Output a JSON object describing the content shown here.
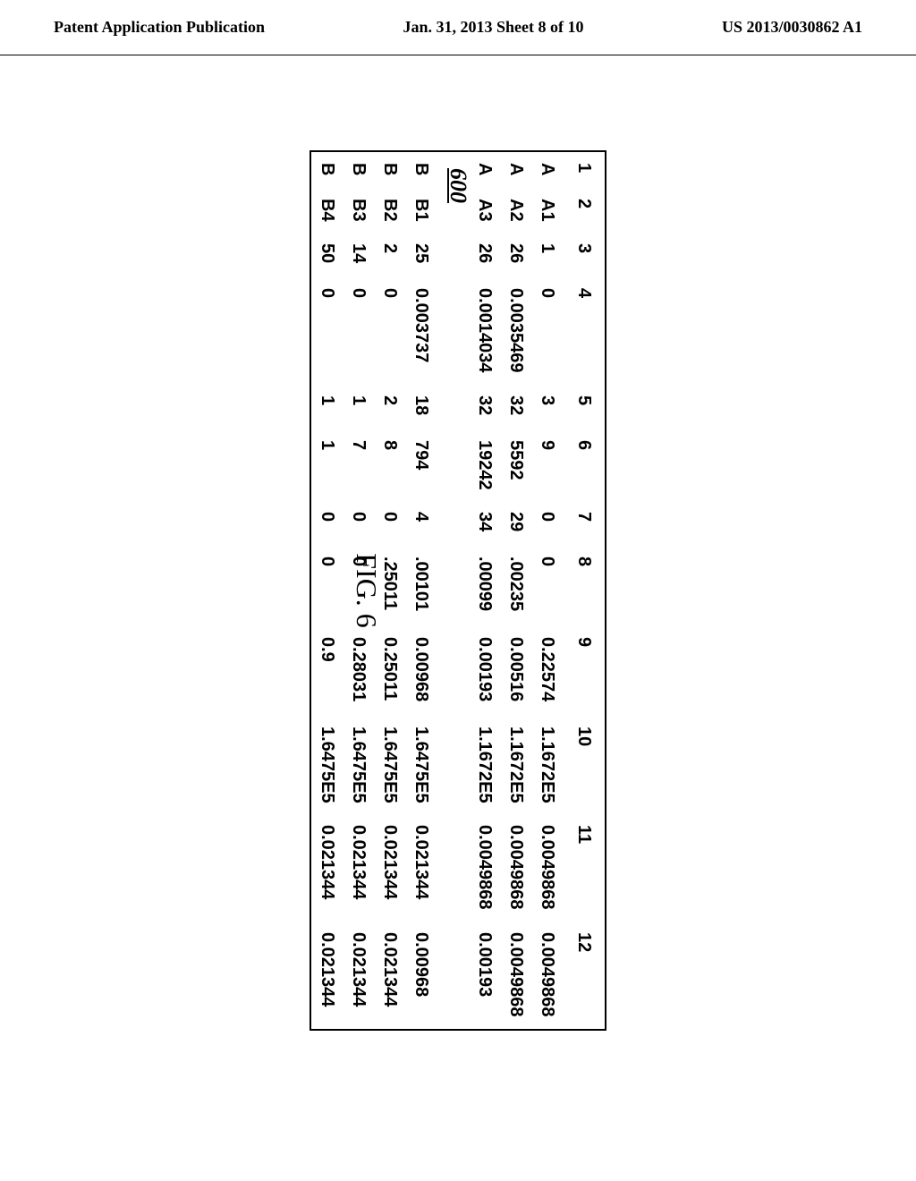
{
  "header": {
    "left": "Patent Application Publication",
    "center": "Jan. 31, 2013  Sheet 8 of 10",
    "right": "US 2013/0030862 A1"
  },
  "figure": {
    "ref": "600",
    "title": "FIG. 6"
  },
  "table": {
    "columns": [
      "1",
      "2",
      "3",
      "4",
      "5",
      "6",
      "7",
      "8",
      "9",
      "10",
      "11",
      "12"
    ],
    "groupA": [
      {
        "c1": "A",
        "c2": "A1",
        "c3": "1",
        "c4": "0",
        "c5": "3",
        "c6": "9",
        "c7": "0",
        "c8": "0",
        "c9": "0.22574",
        "c10": "1.1672E5",
        "c11": "0.0049868",
        "c12": "0.0049868"
      },
      {
        "c1": "A",
        "c2": "A2",
        "c3": "26",
        "c4": "0.0035469",
        "c5": "32",
        "c6": "5592",
        "c7": "29",
        "c8": ".00235",
        "c9": "0.00516",
        "c10": "1.1672E5",
        "c11": "0.0049868",
        "c12": "0.0049868"
      },
      {
        "c1": "A",
        "c2": "A3",
        "c3": "26",
        "c4": "0.0014034",
        "c5": "32",
        "c6": "19242",
        "c7": "34",
        "c8": ".00099",
        "c9": "0.00193",
        "c10": "1.1672E5",
        "c11": "0.0049868",
        "c12": "0.00193"
      }
    ],
    "groupB": [
      {
        "c1": "B",
        "c2": "B1",
        "c3": "25",
        "c4": "0.003737",
        "c5": "18",
        "c6": "794",
        "c7": "4",
        "c8": ".00101",
        "c9": "0.00968",
        "c10": "1.6475E5",
        "c11": "0.021344",
        "c12": "0.00968"
      },
      {
        "c1": "B",
        "c2": "B2",
        "c3": "2",
        "c4": "0",
        "c5": "2",
        "c6": "8",
        "c7": "0",
        "c8": ".25011",
        "c9": "0.25011",
        "c10": "1.6475E5",
        "c11": "0.021344",
        "c12": "0.021344"
      },
      {
        "c1": "B",
        "c2": "B3",
        "c3": "14",
        "c4": "0",
        "c5": "1",
        "c6": "7",
        "c7": "0",
        "c8": "0",
        "c9": "0.28031",
        "c10": "1.6475E5",
        "c11": "0.021344",
        "c12": "0.021344"
      },
      {
        "c1": "B",
        "c2": "B4",
        "c3": "50",
        "c4": "0",
        "c5": "1",
        "c6": "1",
        "c7": "0",
        "c8": "0",
        "c9": "0.9",
        "c10": "1.6475E5",
        "c11": "0.021344",
        "c12": "0.021344"
      }
    ]
  }
}
